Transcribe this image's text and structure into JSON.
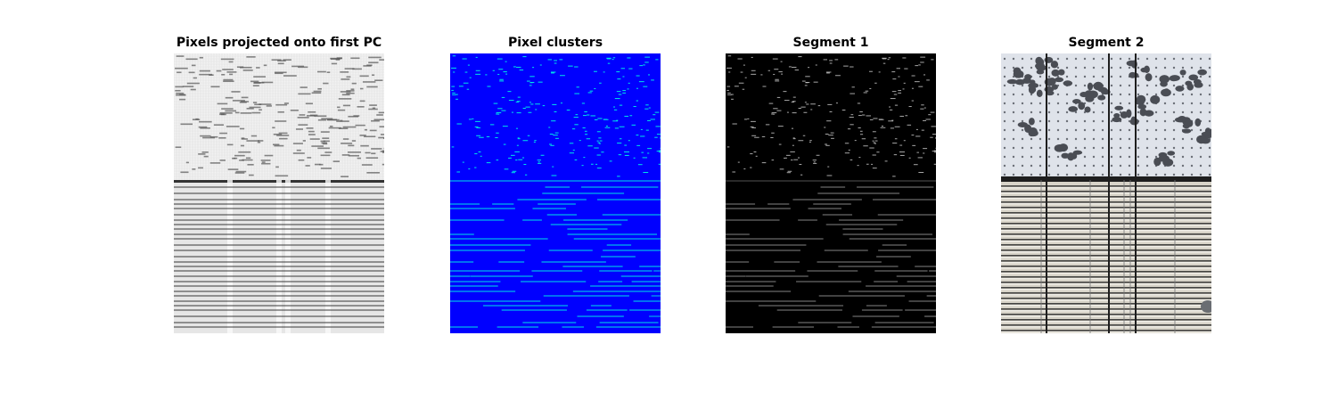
{
  "panels": [
    {
      "title": "Pixels projected onto first PC",
      "kind": "grayscale-projection",
      "colors": {
        "background": "#f2f2f2",
        "line": "#1a1a1a",
        "border": "#333333"
      }
    },
    {
      "title": "Pixel clusters",
      "kind": "cluster-map",
      "colors": {
        "background": "#0000ff",
        "line": "#00e5e5"
      }
    },
    {
      "title": "Segment 1",
      "kind": "segment-mask",
      "colors": {
        "background": "#000000",
        "line": "#cfcfcf"
      }
    },
    {
      "title": "Segment 2",
      "kind": "segment-photo",
      "colors": {
        "panel": "#dfe3ea",
        "dots": "#4a4d54",
        "blinds": "#d7d3c8",
        "slat_shadow": "#2a2a2a",
        "post": "#1e1e1e"
      }
    }
  ]
}
